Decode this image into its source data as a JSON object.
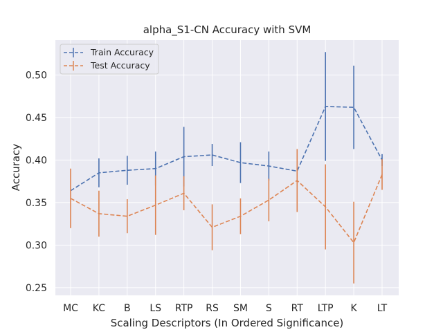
{
  "chart_data": {
    "type": "line",
    "title": "alpha_S1-CN Accuracy with SVM",
    "xlabel": "Scaling Descriptors (In Ordered Significance)",
    "ylabel": "Accuracy",
    "categories": [
      "MC",
      "KC",
      "B",
      "LS",
      "RTP",
      "RS",
      "SM",
      "S",
      "RT",
      "LTP",
      "K",
      "LT"
    ],
    "ylim": [
      0.241,
      0.541
    ],
    "yticks": [
      0.25,
      0.3,
      0.35,
      0.4,
      0.45,
      0.5
    ],
    "ytick_labels": [
      "0.25",
      "0.30",
      "0.35",
      "0.40",
      "0.45",
      "0.50"
    ],
    "grid": true,
    "legend_position": "top-left",
    "series": [
      {
        "name": "Train Accuracy",
        "color": "#4c72b0",
        "line_style": "dashed",
        "values": [
          0.364,
          0.385,
          0.388,
          0.39,
          0.404,
          0.406,
          0.397,
          0.393,
          0.387,
          0.463,
          0.462,
          0.4
        ],
        "errors": [
          0.0,
          0.017,
          0.017,
          0.02,
          0.035,
          0.013,
          0.024,
          0.017,
          0.0,
          0.064,
          0.049,
          0.007
        ]
      },
      {
        "name": "Test Accuracy",
        "color": "#dd8452",
        "line_style": "dashed",
        "values": [
          0.355,
          0.337,
          0.334,
          0.347,
          0.361,
          0.321,
          0.334,
          0.353,
          0.376,
          0.345,
          0.303,
          0.383
        ],
        "errors": [
          0.035,
          0.027,
          0.02,
          0.035,
          0.02,
          0.027,
          0.021,
          0.025,
          0.037,
          0.05,
          0.048,
          0.018
        ]
      }
    ]
  }
}
